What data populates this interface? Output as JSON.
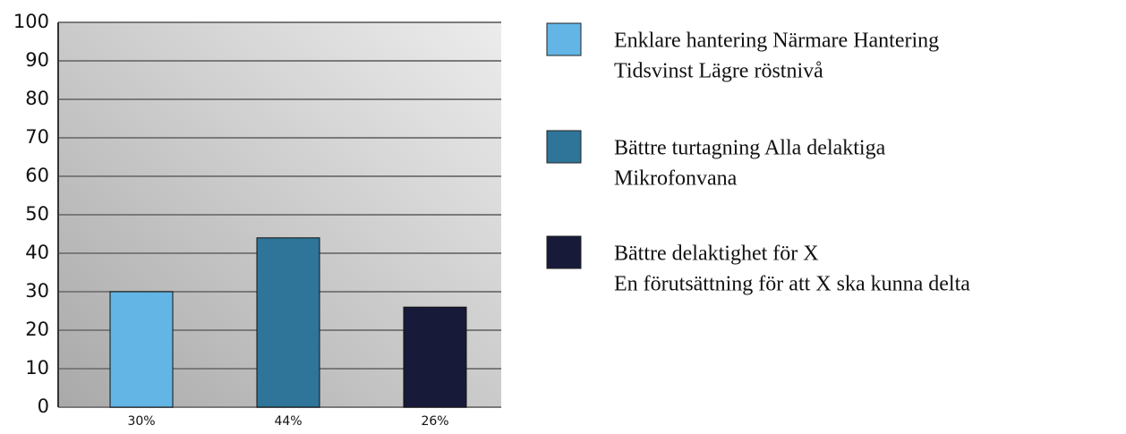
{
  "chart_data": {
    "type": "bar",
    "categories": [
      [
        "Enklare hantering Närmare Hantering",
        "Tidsvinst Lägre röstnivå"
      ],
      [
        "Bättre turtagning Alla delaktiga",
        "Mikrofonvana"
      ],
      [
        "Bättre delaktighet för X",
        "En förutsättning för  att X ska kunna delta"
      ]
    ],
    "values": [
      30,
      44,
      26
    ],
    "value_labels": [
      "30%",
      "44%",
      "26%"
    ],
    "colors": [
      "#62b5e5",
      "#2e7599",
      "#181a3a"
    ],
    "ylim": [
      0,
      100
    ],
    "yticks": [
      0,
      10,
      20,
      30,
      40,
      50,
      60,
      70,
      80,
      90,
      100
    ],
    "grid": true,
    "legend": "right"
  }
}
